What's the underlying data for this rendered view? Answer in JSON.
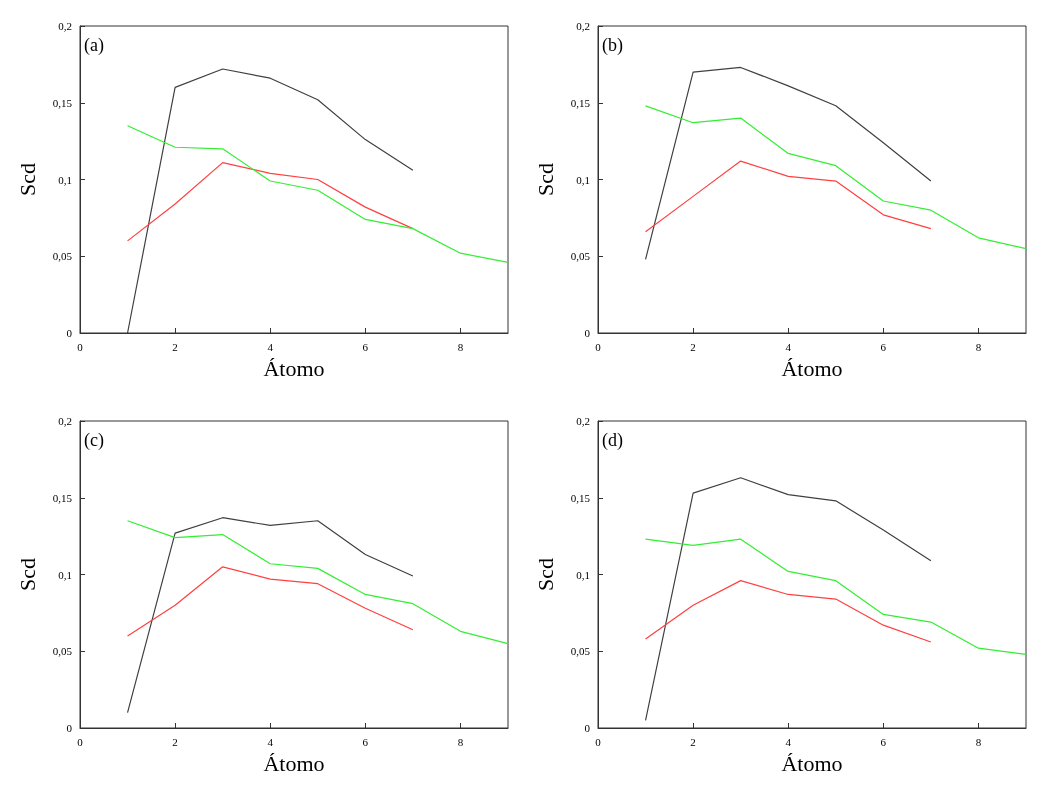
{
  "chart_data": [
    {
      "type": "line",
      "xlabel": "Átomo",
      "ylabel": "Scd",
      "annotations": [
        "(a)"
      ],
      "xlim": [
        0,
        9
      ],
      "xticks": [
        0,
        2,
        4,
        6,
        8
      ],
      "ylim": [
        0,
        0.2
      ],
      "yticks": [
        {
          "value": 0,
          "label": "0"
        },
        {
          "value": 0.05,
          "label": "0,05"
        },
        {
          "value": 0.1,
          "label": "0,1"
        },
        {
          "value": 0.15,
          "label": "0,15"
        },
        {
          "value": 0.2,
          "label": "0,2"
        }
      ],
      "grid": false,
      "marker": "none",
      "line_style": "solid",
      "series": [
        {
          "color": "#404040",
          "x": [
            1,
            2,
            3,
            4,
            5,
            6,
            7
          ],
          "values": [
            0,
            0.16,
            0.172,
            0.166,
            0.152,
            0.126,
            0.106
          ]
        },
        {
          "color": "#ff4040",
          "x": [
            1,
            2,
            3,
            4,
            5,
            6,
            7
          ],
          "values": [
            0.06,
            0.084,
            0.111,
            0.104,
            0.1,
            0.082,
            0.068
          ]
        },
        {
          "color": "#33ee33",
          "x": [
            1,
            2,
            3,
            4,
            5,
            6,
            7,
            8,
            9
          ],
          "values": [
            0.135,
            0.121,
            0.12,
            0.099,
            0.093,
            0.074,
            0.068,
            0.052,
            0.046
          ]
        }
      ]
    },
    {
      "type": "line",
      "xlabel": "Átomo",
      "ylabel": "Scd",
      "annotations": [
        "(b)"
      ],
      "xlim": [
        0,
        9
      ],
      "xticks": [
        0,
        2,
        4,
        6,
        8
      ],
      "ylim": [
        0,
        0.2
      ],
      "yticks": [
        {
          "value": 0,
          "label": "0"
        },
        {
          "value": 0.05,
          "label": "0,05"
        },
        {
          "value": 0.1,
          "label": "0,1"
        },
        {
          "value": 0.15,
          "label": "0,15"
        },
        {
          "value": 0.2,
          "label": "0,2"
        }
      ],
      "grid": false,
      "marker": "none",
      "line_style": "solid",
      "series": [
        {
          "color": "#404040",
          "x": [
            1,
            2,
            3,
            4,
            5,
            6,
            7
          ],
          "values": [
            0.048,
            0.17,
            0.173,
            0.161,
            0.148,
            0.124,
            0.099
          ]
        },
        {
          "color": "#ff4040",
          "x": [
            1,
            2,
            3,
            4,
            5,
            6,
            7
          ],
          "values": [
            0.066,
            0.089,
            0.112,
            0.102,
            0.099,
            0.077,
            0.068
          ]
        },
        {
          "color": "#33ee33",
          "x": [
            1,
            2,
            3,
            4,
            5,
            6,
            7,
            8,
            9
          ],
          "values": [
            0.148,
            0.137,
            0.14,
            0.117,
            0.109,
            0.086,
            0.08,
            0.062,
            0.055
          ]
        }
      ]
    },
    {
      "type": "line",
      "xlabel": "Átomo",
      "ylabel": "Scd",
      "annotations": [
        "(c)"
      ],
      "xlim": [
        0,
        9
      ],
      "xticks": [
        0,
        2,
        4,
        6,
        8
      ],
      "ylim": [
        0,
        0.2
      ],
      "yticks": [
        {
          "value": 0,
          "label": "0"
        },
        {
          "value": 0.05,
          "label": "0,05"
        },
        {
          "value": 0.1,
          "label": "0,1"
        },
        {
          "value": 0.15,
          "label": "0,15"
        },
        {
          "value": 0.2,
          "label": "0,2"
        }
      ],
      "grid": false,
      "marker": "none",
      "line_style": "solid",
      "series": [
        {
          "color": "#404040",
          "x": [
            1,
            2,
            3,
            4,
            5,
            6,
            7
          ],
          "values": [
            0.01,
            0.127,
            0.137,
            0.132,
            0.135,
            0.113,
            0.099
          ]
        },
        {
          "color": "#ff4040",
          "x": [
            1,
            2,
            3,
            4,
            5,
            6,
            7
          ],
          "values": [
            0.06,
            0.08,
            0.105,
            0.097,
            0.094,
            0.078,
            0.064
          ]
        },
        {
          "color": "#33ee33",
          "x": [
            1,
            2,
            3,
            4,
            5,
            6,
            7,
            8,
            9
          ],
          "values": [
            0.135,
            0.124,
            0.126,
            0.107,
            0.104,
            0.087,
            0.081,
            0.063,
            0.055
          ]
        }
      ]
    },
    {
      "type": "line",
      "xlabel": "Átomo",
      "ylabel": "Scd",
      "annotations": [
        "(d)"
      ],
      "xlim": [
        0,
        9
      ],
      "xticks": [
        0,
        2,
        4,
        6,
        8
      ],
      "ylim": [
        0,
        0.2
      ],
      "yticks": [
        {
          "value": 0,
          "label": "0"
        },
        {
          "value": 0.05,
          "label": "0,05"
        },
        {
          "value": 0.1,
          "label": "0,1"
        },
        {
          "value": 0.15,
          "label": "0,15"
        },
        {
          "value": 0.2,
          "label": "0,2"
        }
      ],
      "grid": false,
      "marker": "none",
      "line_style": "solid",
      "series": [
        {
          "color": "#404040",
          "x": [
            1,
            2,
            3,
            4,
            5,
            6,
            7
          ],
          "values": [
            0.005,
            0.153,
            0.163,
            0.152,
            0.148,
            0.129,
            0.109
          ]
        },
        {
          "color": "#ff4040",
          "x": [
            1,
            2,
            3,
            4,
            5,
            6,
            7
          ],
          "values": [
            0.058,
            0.08,
            0.096,
            0.087,
            0.084,
            0.067,
            0.056
          ]
        },
        {
          "color": "#33ee33",
          "x": [
            1,
            2,
            3,
            4,
            5,
            6,
            7,
            8,
            9
          ],
          "values": [
            0.123,
            0.119,
            0.123,
            0.102,
            0.096,
            0.074,
            0.069,
            0.052,
            0.048
          ]
        }
      ]
    }
  ]
}
